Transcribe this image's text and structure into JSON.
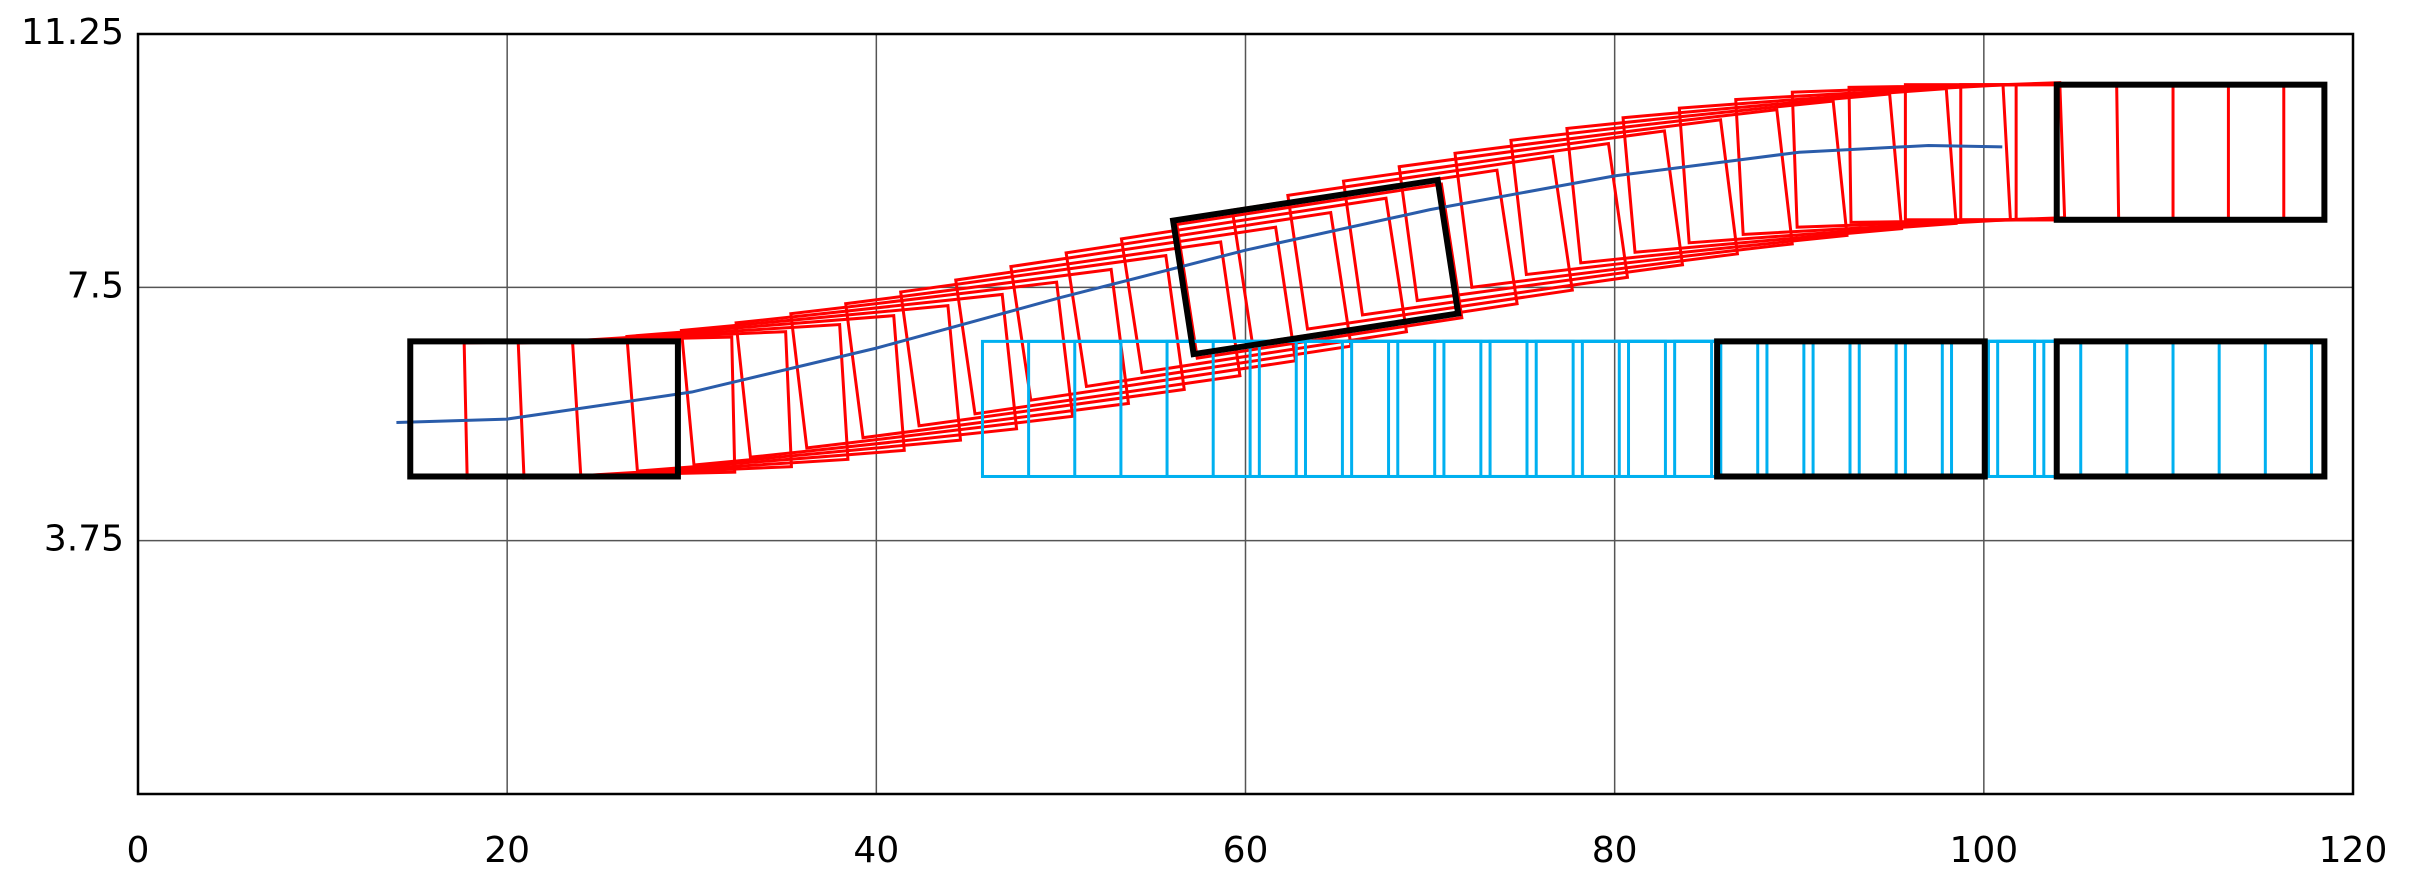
{
  "chart_data": {
    "type": "vehicle-boxes",
    "xlim": [
      0,
      120
    ],
    "ylim": [
      0,
      11.25
    ],
    "xticks": [
      0,
      20,
      40,
      60,
      80,
      100,
      120
    ],
    "yticks": [
      3.75,
      7.5,
      11.25
    ],
    "grid": true,
    "vehicle_length": 14.5,
    "vehicle_width": 2,
    "trajectory": {
      "color": "#2a5caa",
      "x": [
        14,
        20,
        30,
        40,
        50,
        60,
        70,
        80,
        90,
        97,
        101
      ],
      "y": [
        5.5,
        5.55,
        5.95,
        6.6,
        7.35,
        8.05,
        8.65,
        9.15,
        9.5,
        9.6,
        9.58
      ]
    },
    "vehicles": [
      {
        "color": "#ff0000",
        "x": [
          22,
          25,
          28,
          31,
          34,
          37,
          40,
          43,
          46,
          49,
          52,
          55,
          58,
          61,
          64,
          67,
          70,
          73,
          76,
          79,
          82,
          85,
          88,
          91,
          94,
          97,
          100,
          103,
          106,
          109
        ],
        "y": [
          5.7,
          5.72,
          5.76,
          5.83,
          5.93,
          6.05,
          6.19,
          6.35,
          6.52,
          6.71,
          6.9,
          7.11,
          7.32,
          7.53,
          7.74,
          7.95,
          8.16,
          8.36,
          8.56,
          8.74,
          8.91,
          9.06,
          9.19,
          9.3,
          9.39,
          9.46,
          9.49,
          9.5,
          9.5,
          9.5
        ],
        "heading": [
          0,
          0.35,
          0.67,
          0.96,
          1.22,
          1.46,
          1.67,
          1.86,
          2.02,
          2.15,
          2.25,
          2.33,
          2.38,
          2.4,
          2.39,
          2.36,
          2.3,
          2.22,
          2.11,
          1.97,
          1.8,
          1.61,
          1.39,
          1.14,
          0.86,
          0.56,
          0.23,
          0,
          0,
          0
        ]
      },
      {
        "color": "#00b0f0",
        "x": [
          53,
          55.5,
          58,
          60.5,
          63,
          65.5,
          68,
          70.5,
          73,
          75.5,
          78,
          80.5,
          83,
          85.5,
          88,
          90.5,
          93,
          95.5,
          98,
          100.5,
          103,
          105.5,
          108,
          110.5
        ],
        "y": [
          5.7,
          5.7,
          5.7,
          5.7,
          5.7,
          5.7,
          5.7,
          5.7,
          5.7,
          5.7,
          5.7,
          5.7,
          5.7,
          5.7,
          5.7,
          5.7,
          5.7,
          5.7,
          5.7,
          5.7,
          5.7,
          5.7,
          5.7,
          5.7
        ],
        "heading": [
          0,
          0,
          0,
          0,
          0,
          0,
          0,
          0,
          0,
          0,
          0,
          0,
          0,
          0,
          0,
          0,
          0,
          0,
          0,
          0,
          0,
          0,
          0,
          0
        ]
      },
      {
        "color": "#000000",
        "x": [
          22,
          63.8,
          92.8,
          111.2,
          111.2
        ],
        "y": [
          5.7,
          7.8,
          5.7,
          5.7,
          9.5
        ],
        "heading": [
          0,
          2.4,
          0,
          0,
          0
        ]
      }
    ]
  }
}
